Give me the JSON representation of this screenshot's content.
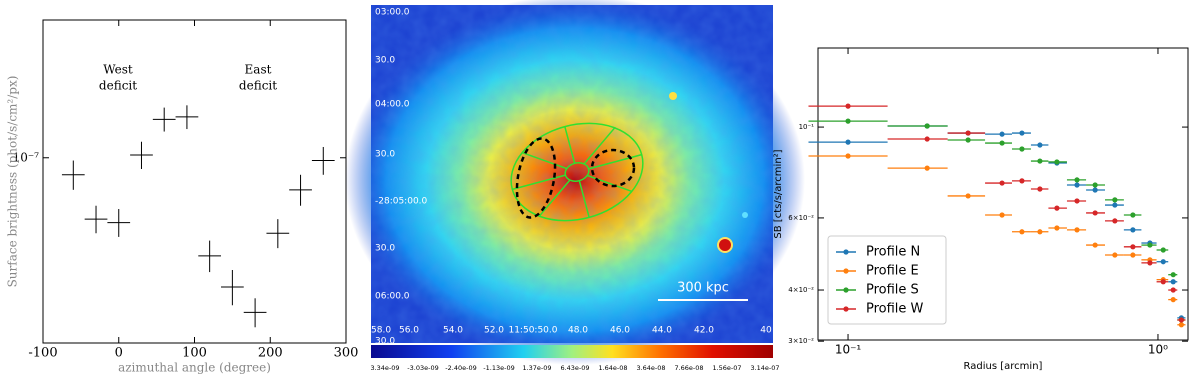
{
  "chart_data": [
    {
      "type": "errorbar",
      "xlabel": "azimuthal angle (degree)",
      "ylabel": "Surface brightness (phot/s/cm²/px)",
      "annotations": [
        "West",
        "deficit",
        "East",
        "deficit"
      ],
      "x": [
        -60,
        -30,
        0,
        30,
        60,
        90,
        120,
        150,
        180,
        210,
        240,
        270
      ],
      "values": [
        9.4e-08,
        8e-08,
        7.9e-08,
        1.01e-07,
        1.15e-07,
        1.16e-07,
        7e-08,
        6.25e-08,
        5.7e-08,
        7.6e-08,
        8.9e-08,
        9.9e-08
      ],
      "xerr": [
        15,
        15,
        15,
        15,
        15,
        15,
        15,
        15,
        15,
        15,
        15,
        15
      ],
      "yerr": [
        5e-09,
        4e-09,
        4e-09,
        5e-09,
        5e-09,
        5e-09,
        4e-09,
        4e-09,
        3e-09,
        4e-09,
        5e-09,
        5e-09
      ],
      "xlim": [
        -100,
        300
      ],
      "xticks": [
        -100,
        0,
        100,
        200,
        300
      ],
      "ylim": [
        5.1e-08,
        1.65e-07
      ],
      "yticks": [
        {
          "value": 1e-07,
          "label": "10⁻⁷"
        }
      ],
      "log_y": true,
      "color": "#000000"
    },
    {
      "type": "image",
      "y_labels": [
        "03:00.0",
        "30.0",
        "04:00.0",
        "30.0",
        "-28:05:00.0",
        "30.0",
        "06:00.0",
        "30.0"
      ],
      "x_labels": [
        "58.0",
        "56.0",
        "54.0",
        "52.0",
        "11:50:50.0",
        "48.0",
        "46.0",
        "44.0",
        "42.0",
        "40"
      ],
      "scale_bar": "300 kpc",
      "colorbar_labels": [
        "3.34e-09",
        "-3.03e-09",
        "-2.40e-09",
        "-1.13e-09",
        "1.37e-09",
        "6.43e-09",
        "1.64e-08",
        "3.64e-08",
        "7.66e-08",
        "1.56e-07",
        "3.14e-07"
      ]
    },
    {
      "type": "errorbar",
      "xlabel": "Radius [arcmin]",
      "ylabel": "SB [cts/s/arcmin²]",
      "log_x": true,
      "log_y": true,
      "legend": "lower left",
      "xlim": [
        0.08,
        1.25
      ],
      "xticks": [
        {
          "value": 0.1,
          "label": "10⁻¹"
        },
        {
          "value": 1,
          "label": "10⁰"
        }
      ],
      "ylim": [
        0.0302,
        0.156
      ],
      "yticks": [
        {
          "value": 0.1,
          "label": "10⁻¹"
        },
        {
          "value": 0.06,
          "label": "6×10⁻²"
        },
        {
          "value": 0.04,
          "label": "4×10⁻²"
        },
        {
          "value": 0.03,
          "label": "3×10⁻²"
        }
      ],
      "x": [
        0.1,
        0.18,
        0.244,
        0.314,
        0.364,
        0.416,
        0.472,
        0.548,
        0.627,
        0.726,
        0.83,
        0.942,
        1.04,
        1.12,
        1.19
      ],
      "series": [
        {
          "name": "Profile N",
          "color": "#1f77b4",
          "values": [
            0.0919,
            0.1006,
            0.0967,
            0.0961,
            0.0967,
            0.0904,
            0.0817,
            0.0722,
            0.0702,
            0.0645,
            0.0561,
            0.0521,
            0.0469,
            0.0419,
            0.0342
          ]
        },
        {
          "name": "Profile E",
          "color": "#ff7f0e",
          "values": [
            0.085,
            0.0794,
            0.0679,
            0.061,
            0.0555,
            0.0555,
            0.0567,
            0.0561,
            0.0515,
            0.0487,
            0.0487,
            0.0474,
            0.0424,
            0.0379,
            0.0329
          ]
        },
        {
          "name": "Profile S",
          "color": "#2ca02c",
          "values": [
            0.1034,
            0.1006,
            0.093,
            0.0914,
            0.0884,
            0.0826,
            0.0822,
            0.0743,
            0.0722,
            0.0664,
            0.061,
            0.0515,
            0.0501,
            0.0436,
            0.0338
          ]
        },
        {
          "name": "Profile W",
          "color": "#d62728",
          "values": [
            0.1125,
            0.0935,
            0.0967,
            0.073,
            0.0739,
            0.0706,
            0.0634,
            0.066,
            0.0617,
            0.059,
            0.051,
            0.0466,
            0.0419,
            0.04,
            0.0338
          ]
        }
      ]
    }
  ]
}
